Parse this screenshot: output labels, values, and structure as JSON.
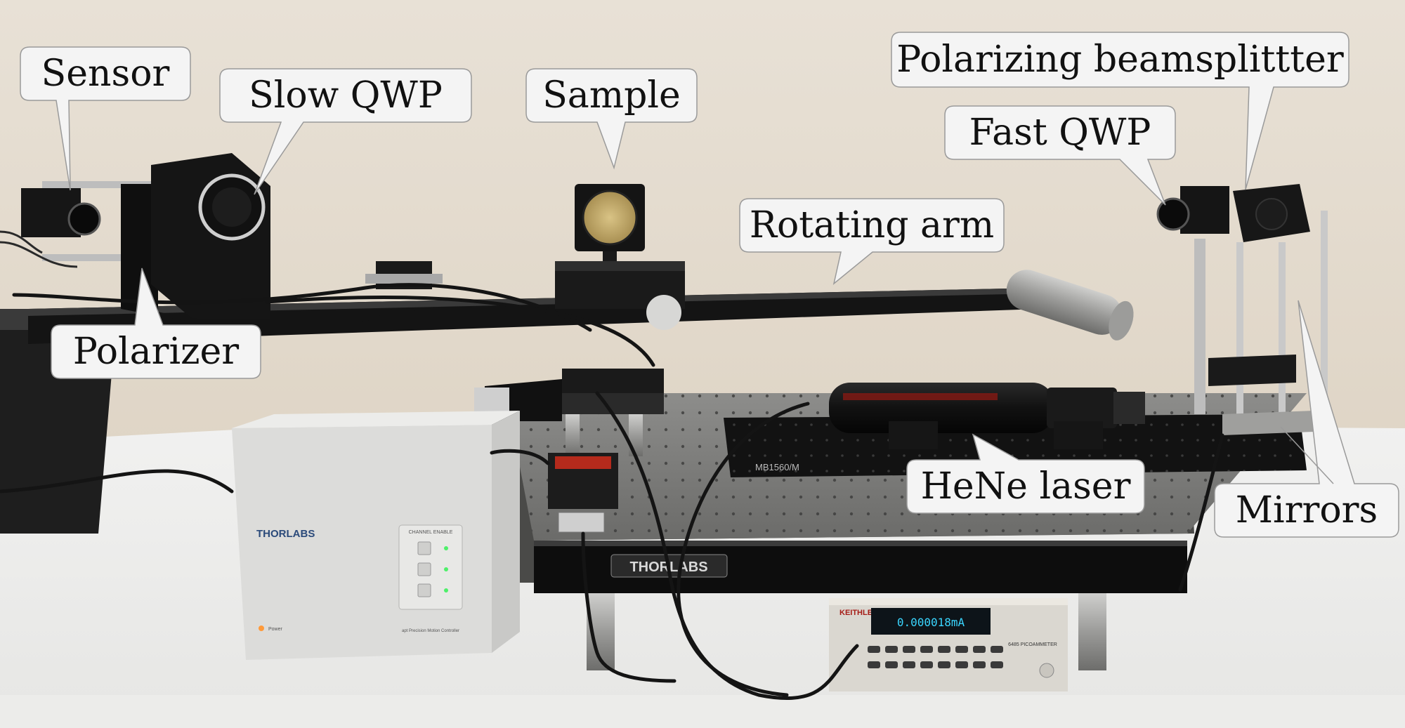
{
  "photo": {
    "brand_labels": {
      "controller": "THORLABS",
      "table": "THORLABS",
      "breadboard_model": "MB1560/M",
      "controller_panel": "CHANNEL ENABLE",
      "controller_power": "Power",
      "controller_series": "apt Precision Motion Controller",
      "picoammeter_brand": "KEITHLEY",
      "picoammeter_model": "6485 PICOAMMETER",
      "picoammeter_display": "0.000018mA"
    }
  },
  "labels": {
    "sensor": "Sensor",
    "slow_qwp": "Slow QWP",
    "sample": "Sample",
    "polarizing_beamsplitter": "Polarizing beamsplittter",
    "fast_qwp": "Fast QWP",
    "rotating_arm": "Rotating arm",
    "polarizer": "Polarizer",
    "hene_laser": "HeNe laser",
    "mirrors": "Mirrors"
  },
  "colors": {
    "callout_fill": "#f4f4f4",
    "callout_stroke": "#9a9a9a",
    "wall": "#e6ddd0",
    "bench": "#f2f2f2",
    "optical_table": "#6e6e6e",
    "hardware_black": "#1b1b1b",
    "display_blue": "#3ad6ff"
  }
}
